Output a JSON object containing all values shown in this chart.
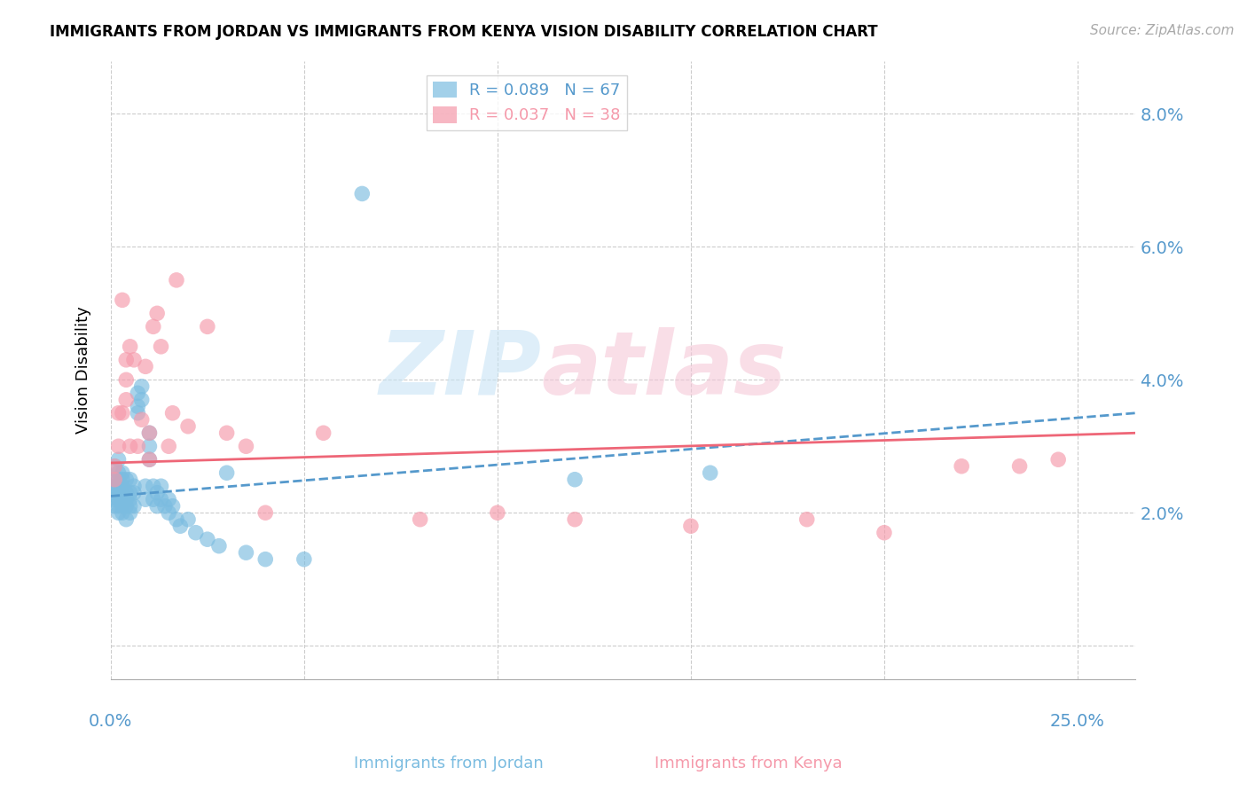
{
  "title": "IMMIGRANTS FROM JORDAN VS IMMIGRANTS FROM KENYA VISION DISABILITY CORRELATION CHART",
  "source": "Source: ZipAtlas.com",
  "ylabel": "Vision Disability",
  "y_ticks": [
    0.0,
    0.02,
    0.04,
    0.06,
    0.08
  ],
  "y_tick_labels": [
    "",
    "2.0%",
    "4.0%",
    "6.0%",
    "8.0%"
  ],
  "x_ticks": [
    0.0,
    0.05,
    0.1,
    0.15,
    0.2,
    0.25
  ],
  "xlim": [
    0.0,
    0.265
  ],
  "ylim": [
    -0.005,
    0.088
  ],
  "jordan_color": "#7bbce0",
  "kenya_color": "#f599aa",
  "jordan_R": 0.089,
  "jordan_N": 67,
  "kenya_R": 0.037,
  "kenya_N": 38,
  "jordan_line_color": "#5599cc",
  "kenya_line_color": "#ee6677",
  "background_color": "#ffffff",
  "grid_color": "#cccccc",
  "tick_label_color": "#5599cc",
  "jordan_points_x": [
    0.001,
    0.001,
    0.001,
    0.001,
    0.001,
    0.001,
    0.002,
    0.002,
    0.002,
    0.002,
    0.002,
    0.002,
    0.002,
    0.002,
    0.003,
    0.003,
    0.003,
    0.003,
    0.003,
    0.003,
    0.003,
    0.004,
    0.004,
    0.004,
    0.004,
    0.004,
    0.005,
    0.005,
    0.005,
    0.005,
    0.005,
    0.006,
    0.006,
    0.006,
    0.007,
    0.007,
    0.007,
    0.008,
    0.008,
    0.009,
    0.009,
    0.01,
    0.01,
    0.01,
    0.011,
    0.011,
    0.012,
    0.012,
    0.013,
    0.013,
    0.014,
    0.015,
    0.015,
    0.016,
    0.017,
    0.018,
    0.02,
    0.022,
    0.025,
    0.028,
    0.03,
    0.035,
    0.04,
    0.05,
    0.065,
    0.12,
    0.155
  ],
  "jordan_points_y": [
    0.025,
    0.022,
    0.024,
    0.021,
    0.023,
    0.027,
    0.02,
    0.022,
    0.023,
    0.025,
    0.021,
    0.024,
    0.026,
    0.028,
    0.02,
    0.022,
    0.023,
    0.024,
    0.026,
    0.021,
    0.025,
    0.019,
    0.021,
    0.022,
    0.023,
    0.025,
    0.02,
    0.022,
    0.021,
    0.023,
    0.025,
    0.021,
    0.023,
    0.024,
    0.035,
    0.038,
    0.036,
    0.037,
    0.039,
    0.022,
    0.024,
    0.028,
    0.03,
    0.032,
    0.022,
    0.024,
    0.021,
    0.023,
    0.022,
    0.024,
    0.021,
    0.02,
    0.022,
    0.021,
    0.019,
    0.018,
    0.019,
    0.017,
    0.016,
    0.015,
    0.026,
    0.014,
    0.013,
    0.013,
    0.068,
    0.025,
    0.026
  ],
  "kenya_points_x": [
    0.001,
    0.001,
    0.002,
    0.002,
    0.003,
    0.003,
    0.004,
    0.004,
    0.004,
    0.005,
    0.005,
    0.006,
    0.007,
    0.008,
    0.009,
    0.01,
    0.01,
    0.011,
    0.012,
    0.013,
    0.015,
    0.016,
    0.017,
    0.02,
    0.025,
    0.03,
    0.035,
    0.04,
    0.055,
    0.08,
    0.1,
    0.12,
    0.15,
    0.18,
    0.2,
    0.22,
    0.235,
    0.245
  ],
  "kenya_points_y": [
    0.027,
    0.025,
    0.035,
    0.03,
    0.035,
    0.052,
    0.037,
    0.04,
    0.043,
    0.045,
    0.03,
    0.043,
    0.03,
    0.034,
    0.042,
    0.028,
    0.032,
    0.048,
    0.05,
    0.045,
    0.03,
    0.035,
    0.055,
    0.033,
    0.048,
    0.032,
    0.03,
    0.02,
    0.032,
    0.019,
    0.02,
    0.019,
    0.018,
    0.019,
    0.017,
    0.027,
    0.027,
    0.028
  ],
  "jordan_line_x": [
    0.0,
    0.265
  ],
  "jordan_line_y": [
    0.0225,
    0.035
  ],
  "kenya_line_x": [
    0.0,
    0.265
  ],
  "kenya_line_y": [
    0.0275,
    0.032
  ]
}
